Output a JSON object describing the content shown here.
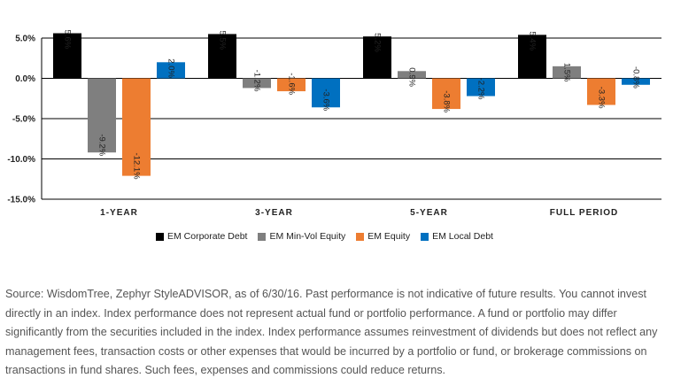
{
  "chart_data": {
    "type": "bar",
    "categories": [
      "1-YEAR",
      "3-YEAR",
      "5-YEAR",
      "FULL PERIOD"
    ],
    "series": [
      {
        "name": "EM Corporate Debt",
        "color": "#000000",
        "values": [
          5.6,
          5.5,
          5.2,
          5.4
        ],
        "labels": [
          "5.6%",
          "5.5%",
          "5.2%",
          "5.4%"
        ]
      },
      {
        "name": "EM Min-Vol Equity",
        "color": "#7f7f7f",
        "values": [
          -9.2,
          -1.2,
          0.9,
          1.5
        ],
        "labels": [
          "-9.2%",
          "-1.2%",
          "0.9%",
          "1.5%"
        ]
      },
      {
        "name": "EM Equity",
        "color": "#ed7d31",
        "values": [
          -12.1,
          -1.6,
          -3.8,
          -3.3
        ],
        "labels": [
          "-12.1%",
          "-1.6%",
          "-3.8%",
          "-3.3%"
        ]
      },
      {
        "name": "EM Local Debt",
        "color": "#0070c0",
        "values": [
          2.0,
          -3.6,
          -2.2,
          -0.8
        ],
        "labels": [
          "2.0%",
          "-3.6%",
          "-2.2%",
          "-0.8%"
        ]
      }
    ],
    "ylim": [
      -15,
      5
    ],
    "yticks": [
      5,
      0,
      -5,
      -10,
      -15
    ],
    "ytick_labels": [
      "5.0%",
      "0.0%",
      "-5.0%",
      "-10.0%",
      "-15.0%"
    ],
    "grid": true,
    "legend": "bottom"
  },
  "source_note": "Source: WisdomTree, Zephyr StyleADVISOR, as of 6/30/16. Past performance is not indicative of future results. You cannot invest directly in an index. Index performance does not represent actual fund or portfolio performance. A fund or portfolio may differ significantly from the securities included in the index. Index performance assumes reinvestment of dividends but does not reflect any management fees, transaction costs or other expenses that would be incurred by a portfolio or fund, or brokerage commissions on transactions in fund shares. Such fees, expenses and commissions could reduce returns."
}
